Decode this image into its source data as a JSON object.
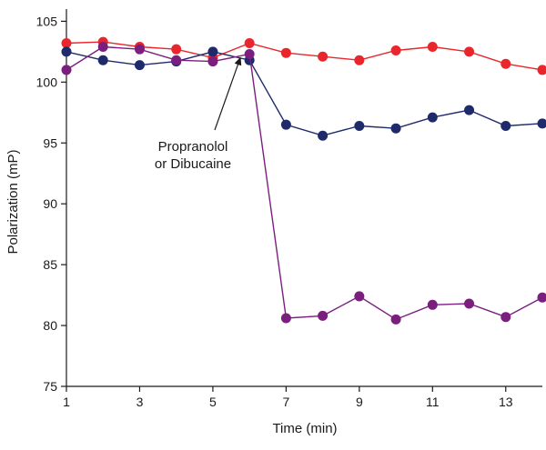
{
  "chart_data": {
    "type": "line",
    "title": "",
    "xlabel": "Time (min)",
    "ylabel": "Polarization (mP)",
    "xlim": [
      1,
      14
    ],
    "ylim": [
      75,
      106
    ],
    "xticks": [
      1,
      3,
      5,
      7,
      9,
      11,
      13
    ],
    "yticks": [
      75,
      80,
      85,
      90,
      95,
      100,
      105
    ],
    "grid": false,
    "legend": "none",
    "series": [
      {
        "color": "#e8262b",
        "points": [
          [
            1,
            103.2
          ],
          [
            2,
            103.3
          ],
          [
            3,
            102.9
          ],
          [
            4,
            102.7
          ],
          [
            5,
            102.0
          ],
          [
            6,
            103.2
          ],
          [
            7,
            102.4
          ],
          [
            8,
            102.1
          ],
          [
            9,
            101.8
          ],
          [
            10,
            102.6
          ],
          [
            11,
            102.9
          ],
          [
            12,
            102.5
          ],
          [
            13,
            101.5
          ],
          [
            14,
            101.0
          ]
        ]
      },
      {
        "color": "#1f2a6b",
        "points": [
          [
            1,
            102.5
          ],
          [
            2,
            101.8
          ],
          [
            3,
            101.4
          ],
          [
            4,
            101.7
          ],
          [
            5,
            102.5
          ],
          [
            6,
            101.8
          ],
          [
            7,
            96.5
          ],
          [
            8,
            95.6
          ],
          [
            9,
            96.4
          ],
          [
            10,
            96.2
          ],
          [
            11,
            97.1
          ],
          [
            12,
            97.7
          ],
          [
            13,
            96.4
          ],
          [
            14,
            96.6
          ]
        ]
      },
      {
        "color": "#7b1f7f",
        "points": [
          [
            1,
            101.0
          ],
          [
            2,
            102.9
          ],
          [
            3,
            102.7
          ],
          [
            4,
            101.8
          ],
          [
            5,
            101.7
          ],
          [
            6,
            102.3
          ],
          [
            7,
            80.6
          ],
          [
            8,
            80.8
          ],
          [
            9,
            82.4
          ],
          [
            10,
            80.5
          ],
          [
            11,
            81.7
          ],
          [
            12,
            81.8
          ],
          [
            13,
            80.7
          ],
          [
            14,
            82.3
          ]
        ]
      }
    ],
    "annotation": {
      "lines": [
        "Propranolol",
        "or Dibucaine"
      ],
      "arrow_to": [
        5.85,
        102.6
      ]
    }
  }
}
